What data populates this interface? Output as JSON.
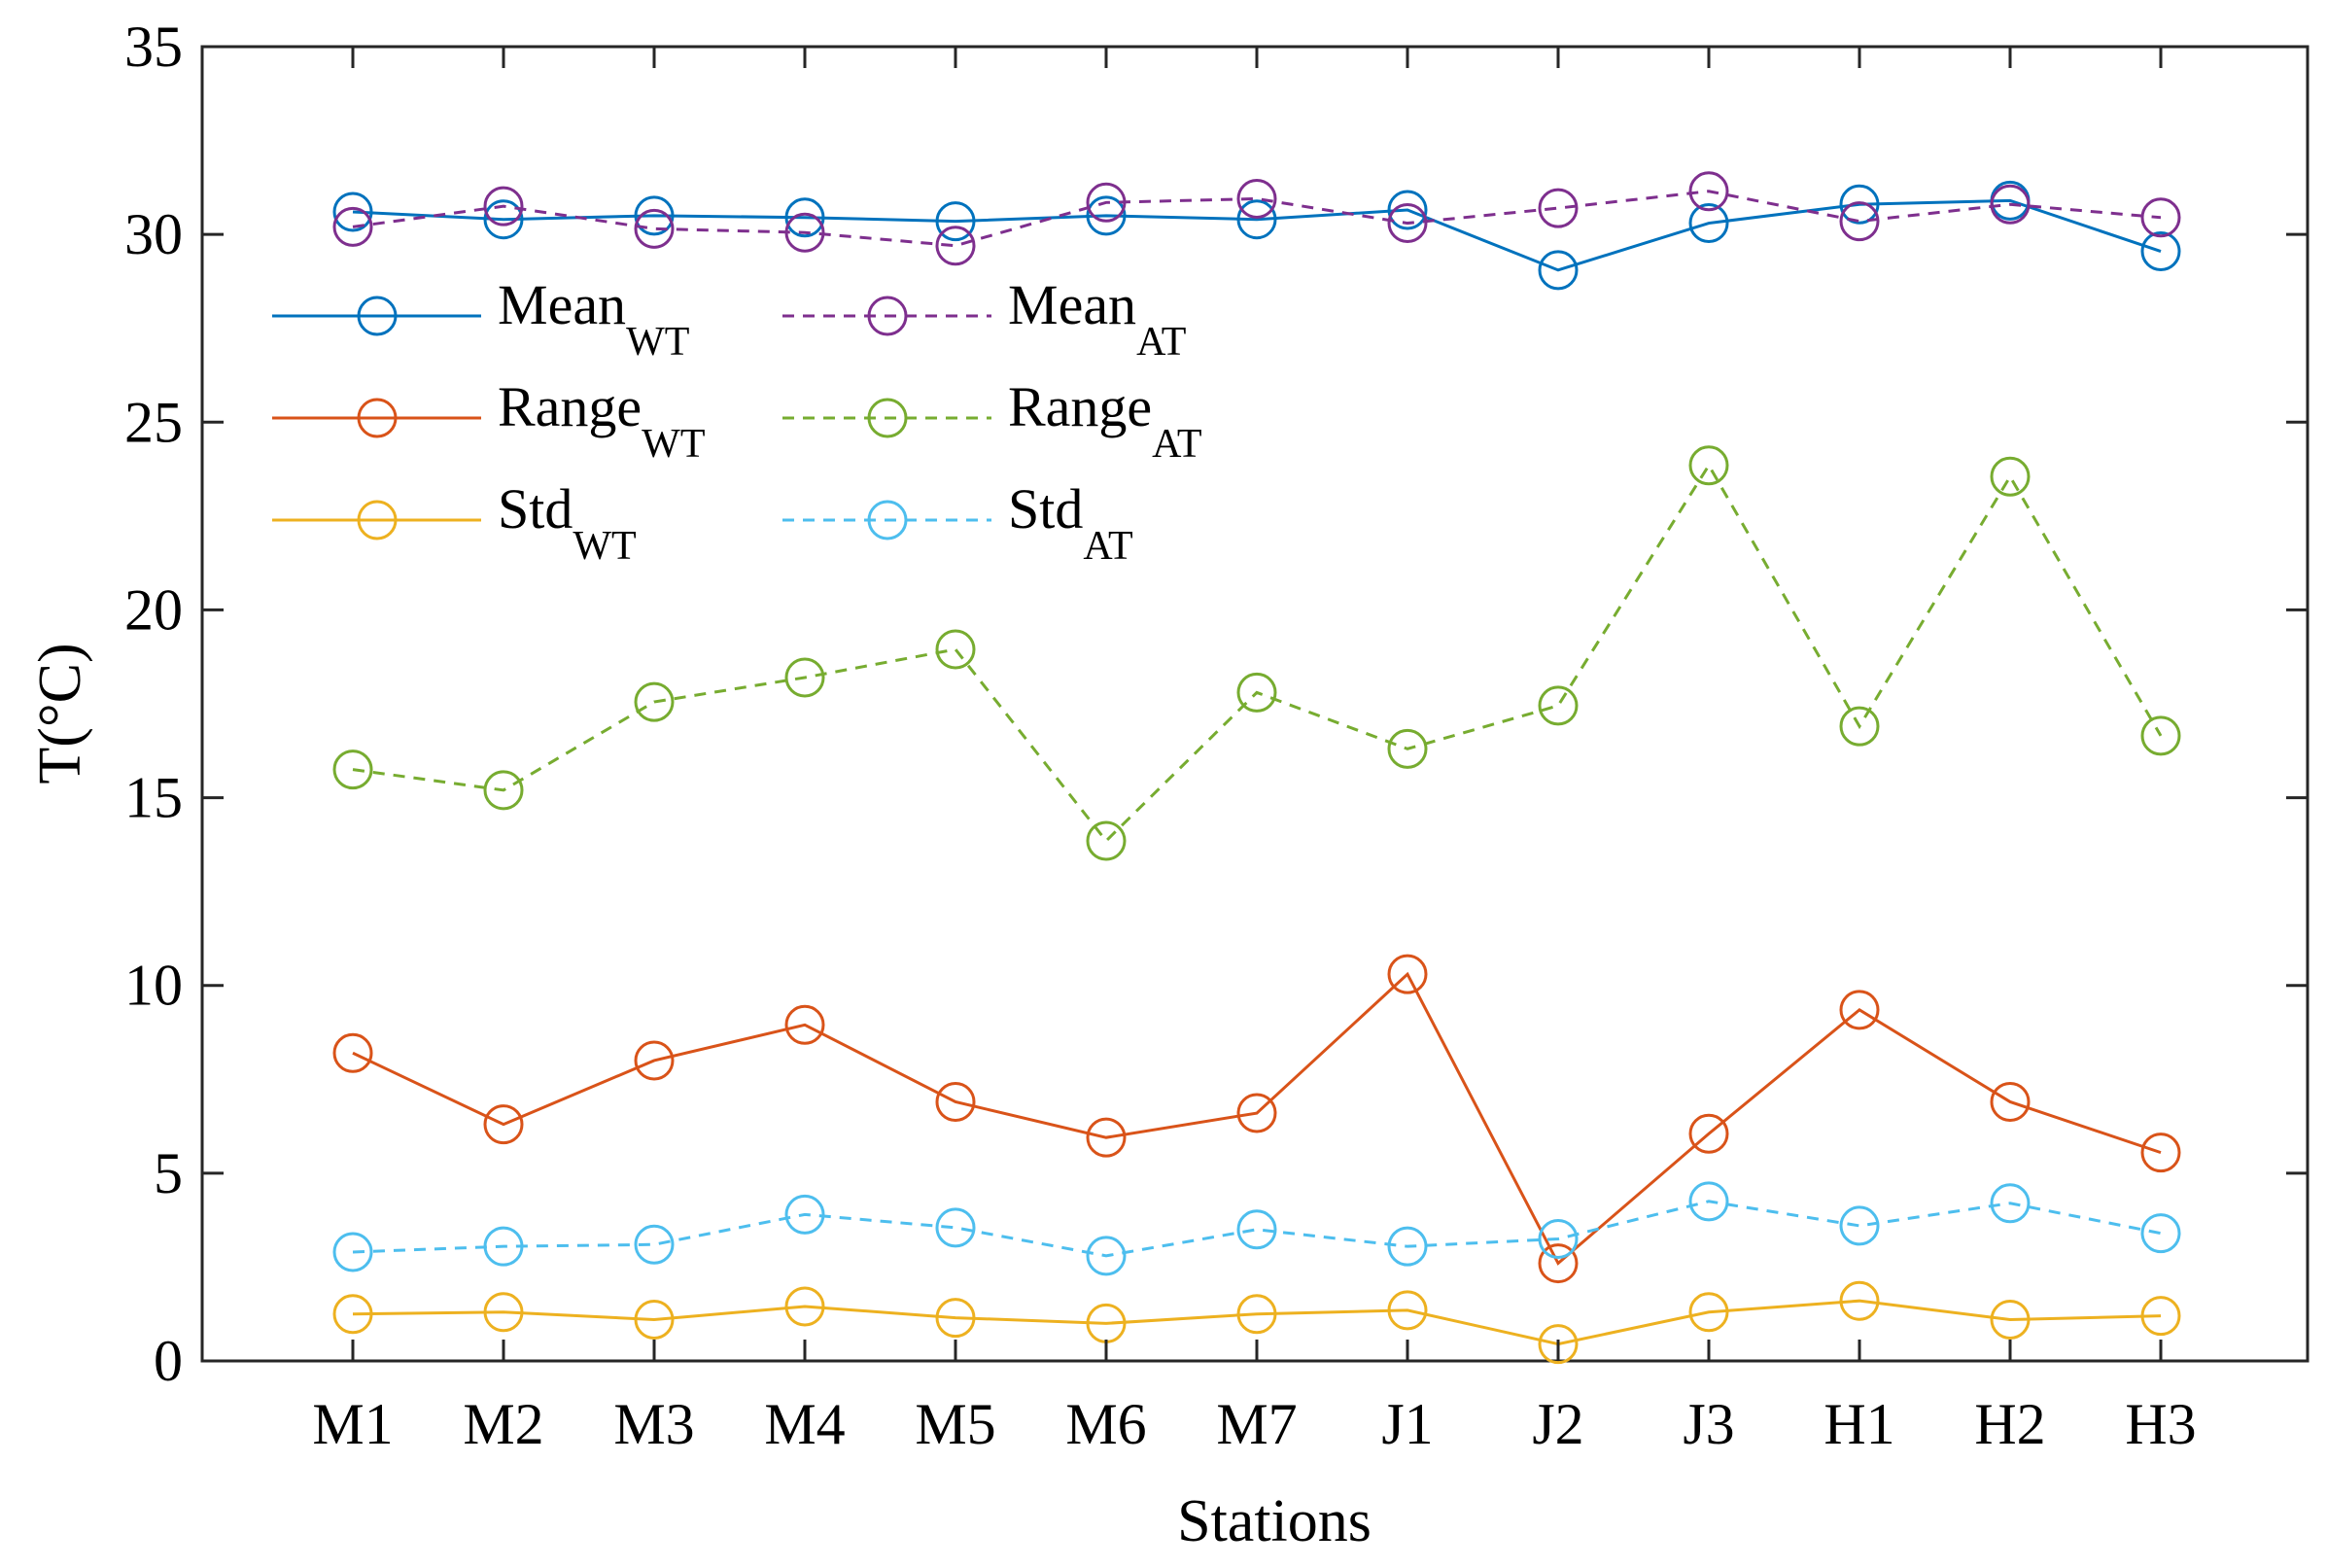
{
  "chart_data": {
    "type": "line",
    "title": "",
    "xlabel": "Stations",
    "ylabel": "T(°C)",
    "ylim": [
      0,
      35
    ],
    "yticks": [
      0,
      5,
      10,
      15,
      20,
      25,
      30,
      35
    ],
    "categories": [
      "M1",
      "M2",
      "M3",
      "M4",
      "M5",
      "M6",
      "M7",
      "J1",
      "J2",
      "J3",
      "H1",
      "H2",
      "H3"
    ],
    "grid": false,
    "legend_position": "upper-left",
    "series": [
      {
        "name": "Mean",
        "sub": "WT",
        "color": "#0072BD",
        "dash": "solid",
        "values": [
          30.6,
          30.4,
          30.5,
          30.45,
          30.35,
          30.5,
          30.4,
          30.65,
          29.05,
          30.3,
          30.8,
          30.9,
          29.55
        ]
      },
      {
        "name": "Mean",
        "sub": "AT",
        "color": "#7E2F8E",
        "dash": "dashed",
        "values": [
          30.2,
          30.75,
          30.15,
          30.05,
          29.7,
          30.85,
          30.95,
          30.3,
          30.7,
          31.15,
          30.35,
          30.8,
          30.45
        ]
      },
      {
        "name": "Range",
        "sub": "WT",
        "color": "#D95319",
        "dash": "solid",
        "values": [
          8.2,
          6.3,
          8.0,
          8.95,
          6.9,
          5.95,
          6.6,
          10.3,
          2.6,
          6.05,
          9.35,
          6.9,
          5.55
        ]
      },
      {
        "name": "Range",
        "sub": "AT",
        "color": "#77AC30",
        "dash": "dashed",
        "values": [
          15.75,
          15.2,
          17.55,
          18.2,
          18.95,
          13.85,
          17.8,
          16.3,
          17.45,
          23.85,
          16.9,
          23.55,
          16.65
        ]
      },
      {
        "name": "Std",
        "sub": "WT",
        "color": "#EDB120",
        "dash": "solid",
        "values": [
          1.25,
          1.3,
          1.1,
          1.45,
          1.15,
          1.0,
          1.25,
          1.35,
          0.45,
          1.3,
          1.6,
          1.1,
          1.2
        ]
      },
      {
        "name": "Std",
        "sub": "AT",
        "color": "#4DBEEE",
        "dash": "dashed",
        "values": [
          2.9,
          3.05,
          3.1,
          3.9,
          3.55,
          2.8,
          3.5,
          3.05,
          3.25,
          4.25,
          3.6,
          4.2,
          3.4
        ]
      }
    ]
  }
}
